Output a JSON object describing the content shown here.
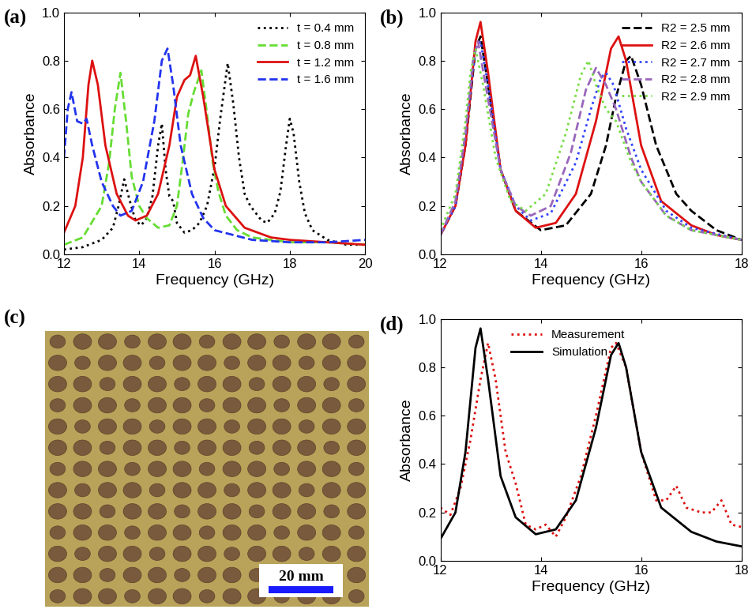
{
  "chart_data": [
    {
      "type": "line",
      "title": "(a)",
      "x_label": "Frequency (GHz)",
      "y_label": "Absorbance",
      "xlim": [
        12,
        20
      ],
      "xticks": [
        12,
        14,
        16,
        18,
        20
      ],
      "ylim": [
        0.0,
        1.0
      ],
      "yticks": [
        0.0,
        0.2,
        0.4,
        0.6,
        0.8,
        1.0
      ],
      "legend": "upper right",
      "series": [
        {
          "name": "t = 0.4 mm",
          "color": "#000000",
          "line_style": "dotted",
          "x": [
            12,
            12.5,
            13,
            13.3,
            13.45,
            13.6,
            13.75,
            13.9,
            14.05,
            14.2,
            14.35,
            14.5,
            14.6,
            14.7,
            14.8,
            14.9,
            15.0,
            15.2,
            15.4,
            15.6,
            15.8,
            16.0,
            16.15,
            16.35,
            16.5,
            16.65,
            16.8,
            16.95,
            17.1,
            17.25,
            17.4,
            17.6,
            17.75,
            17.9,
            18.0,
            18.1,
            18.25,
            18.4,
            18.6,
            19.0,
            19.5,
            20
          ],
          "values": [
            0.02,
            0.03,
            0.06,
            0.11,
            0.2,
            0.31,
            0.22,
            0.14,
            0.12,
            0.15,
            0.24,
            0.45,
            0.54,
            0.35,
            0.24,
            0.22,
            0.13,
            0.09,
            0.1,
            0.13,
            0.2,
            0.36,
            0.56,
            0.79,
            0.62,
            0.4,
            0.25,
            0.2,
            0.17,
            0.14,
            0.13,
            0.17,
            0.26,
            0.45,
            0.56,
            0.5,
            0.3,
            0.17,
            0.1,
            0.06,
            0.04,
            0.04
          ]
        },
        {
          "name": "t = 0.8 mm",
          "color": "#66dd33",
          "line_style": "dashed",
          "x": [
            12,
            12.5,
            13,
            13.2,
            13.35,
            13.5,
            13.65,
            13.8,
            14.0,
            14.2,
            14.5,
            14.8,
            15.0,
            15.15,
            15.3,
            15.45,
            15.65,
            15.8,
            15.95,
            16.1,
            16.3,
            16.6,
            17.0,
            17.5,
            18.0,
            19.0,
            20
          ],
          "values": [
            0.04,
            0.07,
            0.2,
            0.38,
            0.6,
            0.75,
            0.55,
            0.32,
            0.2,
            0.15,
            0.11,
            0.12,
            0.2,
            0.38,
            0.58,
            0.67,
            0.76,
            0.58,
            0.38,
            0.26,
            0.16,
            0.1,
            0.07,
            0.06,
            0.05,
            0.05,
            0.04
          ]
        },
        {
          "name": "t = 1.2 mm",
          "color": "#dd1111",
          "line_style": "solid",
          "x": [
            12,
            12.3,
            12.5,
            12.65,
            12.75,
            12.9,
            13.1,
            13.4,
            13.7,
            13.9,
            14.2,
            14.5,
            14.8,
            15.0,
            15.2,
            15.35,
            15.5,
            15.7,
            16.0,
            16.3,
            16.8,
            17.5,
            18.0,
            19.0,
            20
          ],
          "values": [
            0.09,
            0.2,
            0.4,
            0.7,
            0.8,
            0.7,
            0.45,
            0.25,
            0.16,
            0.14,
            0.16,
            0.25,
            0.45,
            0.65,
            0.72,
            0.74,
            0.82,
            0.65,
            0.35,
            0.2,
            0.11,
            0.07,
            0.06,
            0.05,
            0.04
          ]
        },
        {
          "name": "t = 1.6 mm",
          "color": "#2233ee",
          "line_style": "dashed",
          "x": [
            12,
            12.1,
            12.2,
            12.35,
            12.5,
            12.6,
            12.75,
            13.0,
            13.3,
            13.5,
            13.8,
            14.1,
            14.4,
            14.6,
            14.75,
            14.9,
            15.1,
            15.4,
            15.7,
            16.0,
            17.0,
            18.0,
            19.0,
            20
          ],
          "values": [
            0.4,
            0.6,
            0.67,
            0.55,
            0.54,
            0.56,
            0.45,
            0.3,
            0.2,
            0.16,
            0.18,
            0.3,
            0.55,
            0.8,
            0.85,
            0.7,
            0.45,
            0.25,
            0.15,
            0.1,
            0.06,
            0.05,
            0.05,
            0.06
          ]
        }
      ]
    },
    {
      "type": "line",
      "title": "(b)",
      "x_label": "Frequency (GHz)",
      "y_label": "Absorbance",
      "xlim": [
        12,
        18
      ],
      "xticks": [
        12,
        14,
        16,
        18
      ],
      "ylim": [
        0.0,
        1.0
      ],
      "yticks": [
        0.0,
        0.2,
        0.4,
        0.6,
        0.8,
        1.0
      ],
      "legend": "upper right",
      "series": [
        {
          "name": "R2 = 2.5 mm",
          "color": "#000000",
          "line_style": "dashed",
          "x": [
            12,
            12.3,
            12.5,
            12.7,
            12.8,
            12.95,
            13.2,
            13.5,
            14.0,
            14.5,
            15.0,
            15.3,
            15.5,
            15.7,
            15.8,
            16.0,
            16.3,
            16.7,
            17.0,
            17.5,
            18
          ],
          "values": [
            0.08,
            0.2,
            0.45,
            0.85,
            0.9,
            0.7,
            0.35,
            0.18,
            0.1,
            0.12,
            0.25,
            0.45,
            0.65,
            0.8,
            0.82,
            0.7,
            0.45,
            0.25,
            0.18,
            0.1,
            0.06
          ]
        },
        {
          "name": "R2 = 2.6 mm",
          "color": "#dd1111",
          "line_style": "solid",
          "x": [
            12,
            12.3,
            12.5,
            12.7,
            12.8,
            12.95,
            13.2,
            13.5,
            13.9,
            14.3,
            14.7,
            15.1,
            15.4,
            15.55,
            15.7,
            16.0,
            16.4,
            17.0,
            17.5,
            18
          ],
          "values": [
            0.08,
            0.2,
            0.45,
            0.88,
            0.96,
            0.75,
            0.35,
            0.18,
            0.11,
            0.13,
            0.25,
            0.55,
            0.85,
            0.9,
            0.8,
            0.45,
            0.22,
            0.12,
            0.08,
            0.06
          ]
        },
        {
          "name": "R2 = 2.7 mm",
          "color": "#3344ff",
          "line_style": "dotted",
          "x": [
            12,
            12.3,
            12.5,
            12.7,
            12.8,
            12.95,
            13.2,
            13.5,
            13.8,
            14.2,
            14.7,
            15.0,
            15.2,
            15.3,
            15.45,
            15.7,
            16.0,
            16.5,
            17.0,
            18
          ],
          "values": [
            0.08,
            0.2,
            0.5,
            0.85,
            0.88,
            0.7,
            0.35,
            0.2,
            0.14,
            0.17,
            0.38,
            0.6,
            0.73,
            0.75,
            0.7,
            0.52,
            0.35,
            0.18,
            0.11,
            0.06
          ]
        },
        {
          "name": "R2 = 2.8 mm",
          "color": "#9966bb",
          "line_style": "dashed",
          "x": [
            12,
            12.3,
            12.5,
            12.65,
            12.75,
            12.9,
            13.2,
            13.5,
            13.8,
            14.2,
            14.6,
            14.9,
            15.1,
            15.3,
            15.5,
            15.8,
            16.0,
            16.5,
            17.0,
            18
          ],
          "values": [
            0.08,
            0.22,
            0.5,
            0.8,
            0.88,
            0.7,
            0.35,
            0.2,
            0.16,
            0.2,
            0.42,
            0.68,
            0.77,
            0.7,
            0.6,
            0.4,
            0.3,
            0.16,
            0.1,
            0.06
          ]
        },
        {
          "name": "R2 = 2.9 mm",
          "color": "#77dd44",
          "line_style": "dotted",
          "x": [
            12,
            12.3,
            12.5,
            12.6,
            12.7,
            12.85,
            13.1,
            13.4,
            13.7,
            14.1,
            14.5,
            14.8,
            14.95,
            15.1,
            15.3,
            15.5,
            15.8,
            16.0,
            16.5,
            17.0,
            18
          ],
          "values": [
            0.1,
            0.25,
            0.55,
            0.75,
            0.85,
            0.7,
            0.4,
            0.22,
            0.18,
            0.25,
            0.5,
            0.74,
            0.8,
            0.7,
            0.6,
            0.55,
            0.38,
            0.3,
            0.16,
            0.1,
            0.06
          ]
        }
      ]
    },
    {
      "type": "line",
      "title": "(d)",
      "x_label": "Frequency (GHz)",
      "y_label": "Absorbance",
      "xlim": [
        12,
        18
      ],
      "xticks": [
        12,
        14,
        16,
        18
      ],
      "ylim": [
        0.0,
        1.0
      ],
      "yticks": [
        0.0,
        0.2,
        0.4,
        0.6,
        0.8,
        1.0
      ],
      "legend": "upper left",
      "series": [
        {
          "name": "Measurement",
          "color": "#dd1111",
          "line_style": "dotted",
          "x": [
            12,
            12.2,
            12.4,
            12.6,
            12.8,
            12.95,
            13.1,
            13.3,
            13.5,
            13.7,
            13.9,
            14.1,
            14.3,
            14.5,
            14.8,
            15.1,
            15.4,
            15.5,
            15.7,
            16.0,
            16.3,
            16.5,
            16.7,
            16.9,
            17.2,
            17.4,
            17.6,
            17.8,
            18
          ],
          "values": [
            0.22,
            0.19,
            0.3,
            0.5,
            0.75,
            0.9,
            0.75,
            0.45,
            0.32,
            0.15,
            0.13,
            0.15,
            0.1,
            0.18,
            0.35,
            0.6,
            0.88,
            0.9,
            0.8,
            0.45,
            0.25,
            0.25,
            0.31,
            0.22,
            0.2,
            0.2,
            0.25,
            0.15,
            0.14
          ]
        },
        {
          "name": "Simulation",
          "color": "#000000",
          "line_style": "solid",
          "x": [
            12,
            12.3,
            12.5,
            12.7,
            12.8,
            12.95,
            13.2,
            13.5,
            13.9,
            14.3,
            14.7,
            15.1,
            15.4,
            15.55,
            15.7,
            16.0,
            16.4,
            17.0,
            17.5,
            18
          ],
          "values": [
            0.09,
            0.2,
            0.45,
            0.88,
            0.96,
            0.75,
            0.35,
            0.18,
            0.11,
            0.13,
            0.25,
            0.55,
            0.85,
            0.9,
            0.8,
            0.45,
            0.22,
            0.12,
            0.08,
            0.06
          ]
        }
      ]
    }
  ],
  "photo": {
    "title": "(c)",
    "scale_bar": "20 mm"
  }
}
